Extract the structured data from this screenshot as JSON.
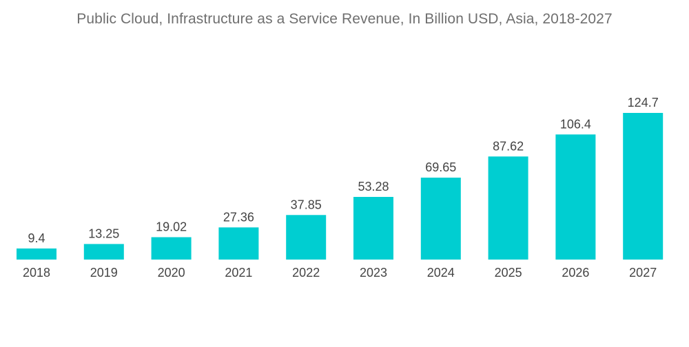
{
  "chart_data": {
    "type": "bar",
    "title": "Public Cloud, Infrastructure as a Service Revenue, In Billion USD, Asia, 2018-2027",
    "categories": [
      "2018",
      "2019",
      "2020",
      "2021",
      "2022",
      "2023",
      "2024",
      "2025",
      "2026",
      "2027"
    ],
    "values": [
      9.4,
      13.25,
      19.02,
      27.36,
      37.85,
      53.28,
      69.65,
      87.62,
      106.4,
      124.7
    ],
    "value_labels": [
      "9.4",
      "13.25",
      "19.02",
      "27.36",
      "37.85",
      "53.28",
      "69.65",
      "87.62",
      "106.4",
      "124.7"
    ],
    "xlabel": "",
    "ylabel": "",
    "ylim": [
      0,
      124.7
    ],
    "grid": false,
    "legend": "none",
    "bar_color": "#00ced1",
    "value_label_color": "#444444",
    "title_color": "#6f6f6f"
  }
}
